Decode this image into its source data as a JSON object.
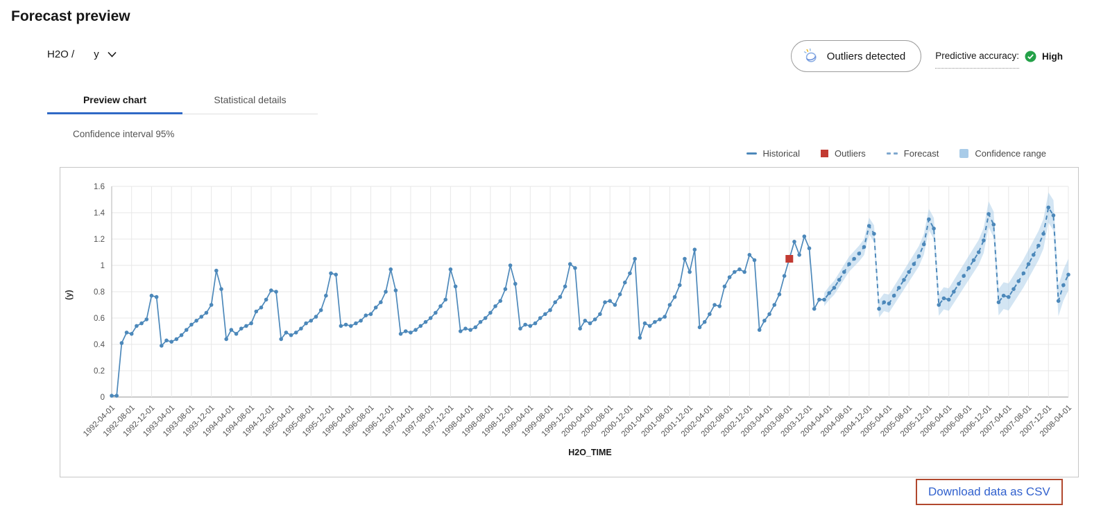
{
  "page": {
    "title": "Forecast preview"
  },
  "selector": {
    "prefix": "H2O /",
    "value": "y"
  },
  "status": {
    "outliers_badge": "Outliers detected",
    "accuracy_label": "Predictive accuracy:",
    "accuracy_value": "High"
  },
  "tabs": [
    {
      "label": "Preview chart",
      "active": true
    },
    {
      "label": "Statistical details",
      "active": false
    }
  ],
  "chart_header": {
    "confidence_interval": "Confidence interval 95%"
  },
  "footer": {
    "download_label": "Download data as CSV"
  },
  "colors": {
    "accent_blue": "#3069c6",
    "historical": "#4c88ba",
    "forecast": "#4c88ba",
    "forecast_legend": "#7fa8cf",
    "outlier": "#c23a32",
    "confidence": "#a8cbe8",
    "success_green": "#24a148",
    "download_border": "#b1482e",
    "download_text": "#3161ce"
  },
  "chart_data": {
    "type": "line",
    "title": "",
    "xlabel": "H2O_TIME",
    "ylabel": "(y)",
    "ylim": [
      0,
      1.6
    ],
    "grid": true,
    "legend_position": "top-right",
    "legend": [
      "Historical",
      "Outliers",
      "Forecast",
      "Confidence range"
    ],
    "y_ticks": [
      0,
      0.2,
      0.4,
      0.6,
      0.8,
      1,
      1.2,
      1.4,
      1.6
    ],
    "x_start": "1992-04-01",
    "x_end": "2008-04-01",
    "x_frequency": "monthly",
    "x_tick_every_months": 4,
    "x_tick_labels": [
      "1992-04-01",
      "1992-08-01",
      "1992-12-01",
      "1993-04-01",
      "1993-08-01",
      "1993-12-01",
      "1994-04-01",
      "1994-08-01",
      "1994-12-01",
      "1995-04-01",
      "1995-08-01",
      "1995-12-01",
      "1996-04-01",
      "1996-08-01",
      "1996-12-01",
      "1997-04-01",
      "1997-08-01",
      "1997-12-01",
      "1998-04-01",
      "1998-08-01",
      "1998-12-01",
      "1999-04-01",
      "1999-08-01",
      "1999-12-01",
      "2000-04-01",
      "2000-08-01",
      "2000-12-01",
      "2001-04-01",
      "2001-08-01",
      "2001-12-01",
      "2002-04-01",
      "2002-08-01",
      "2002-12-01",
      "2003-04-01",
      "2003-08-01",
      "2003-12-01",
      "2004-04-01",
      "2004-08-01",
      "2004-12-01",
      "2005-04-01",
      "2005-08-01",
      "2005-12-01",
      "2006-04-01",
      "2006-08-01",
      "2006-12-01",
      "2007-04-01",
      "2007-08-01",
      "2007-12-01",
      "2008-04-01"
    ],
    "series": [
      {
        "name": "Historical",
        "style": "solid",
        "start_index": 0,
        "values": [
          0.01,
          0.01,
          0.41,
          0.49,
          0.48,
          0.54,
          0.56,
          0.59,
          0.77,
          0.76,
          0.39,
          0.43,
          0.42,
          0.44,
          0.47,
          0.51,
          0.55,
          0.58,
          0.61,
          0.64,
          0.7,
          0.96,
          0.82,
          0.44,
          0.51,
          0.48,
          0.52,
          0.54,
          0.56,
          0.65,
          0.68,
          0.74,
          0.81,
          0.8,
          0.44,
          0.49,
          0.47,
          0.49,
          0.52,
          0.56,
          0.58,
          0.61,
          0.66,
          0.77,
          0.94,
          0.93,
          0.54,
          0.55,
          0.54,
          0.56,
          0.58,
          0.62,
          0.63,
          0.68,
          0.72,
          0.8,
          0.97,
          0.81,
          0.48,
          0.5,
          0.49,
          0.51,
          0.54,
          0.57,
          0.6,
          0.64,
          0.69,
          0.74,
          0.97,
          0.84,
          0.5,
          0.52,
          0.51,
          0.53,
          0.57,
          0.6,
          0.64,
          0.69,
          0.73,
          0.82,
          1.0,
          0.86,
          0.52,
          0.55,
          0.54,
          0.56,
          0.6,
          0.63,
          0.66,
          0.72,
          0.76,
          0.84,
          1.01,
          0.98,
          0.52,
          0.58,
          0.56,
          0.59,
          0.63,
          0.72,
          0.73,
          0.7,
          0.78,
          0.87,
          0.94,
          1.05,
          0.45,
          0.56,
          0.54,
          0.57,
          0.59,
          0.61,
          0.7,
          0.76,
          0.85,
          1.05,
          0.95,
          1.12,
          0.53,
          0.57,
          0.63,
          0.7,
          0.69,
          0.84,
          0.91,
          0.95,
          0.97,
          0.95,
          1.08,
          1.04,
          0.51,
          0.58,
          0.63,
          0.7,
          0.78,
          0.92,
          1.05,
          1.18,
          1.08,
          1.22,
          1.13,
          0.67,
          0.74
        ]
      },
      {
        "name": "Forecast",
        "style": "dashed",
        "start_index": 143,
        "values": [
          0.74,
          0.79,
          0.83,
          0.89,
          0.95,
          1.01,
          1.05,
          1.09,
          1.14,
          1.3,
          1.24,
          0.67,
          0.72,
          0.71,
          0.77,
          0.83,
          0.89,
          0.95,
          1.01,
          1.07,
          1.16,
          1.35,
          1.28,
          0.7,
          0.75,
          0.74,
          0.8,
          0.86,
          0.92,
          0.98,
          1.04,
          1.1,
          1.19,
          1.39,
          1.31,
          0.72,
          0.77,
          0.76,
          0.82,
          0.88,
          0.94,
          1.01,
          1.08,
          1.15,
          1.24,
          1.44,
          1.38,
          0.73,
          0.85,
          0.93
        ]
      }
    ],
    "outliers": [
      {
        "index": 136,
        "date": "2003-08-01",
        "value": 1.05
      }
    ],
    "confidence": {
      "applies_to": "Forecast",
      "level": "95%",
      "half_width_start": 0.05,
      "half_width_end": 0.12
    }
  }
}
